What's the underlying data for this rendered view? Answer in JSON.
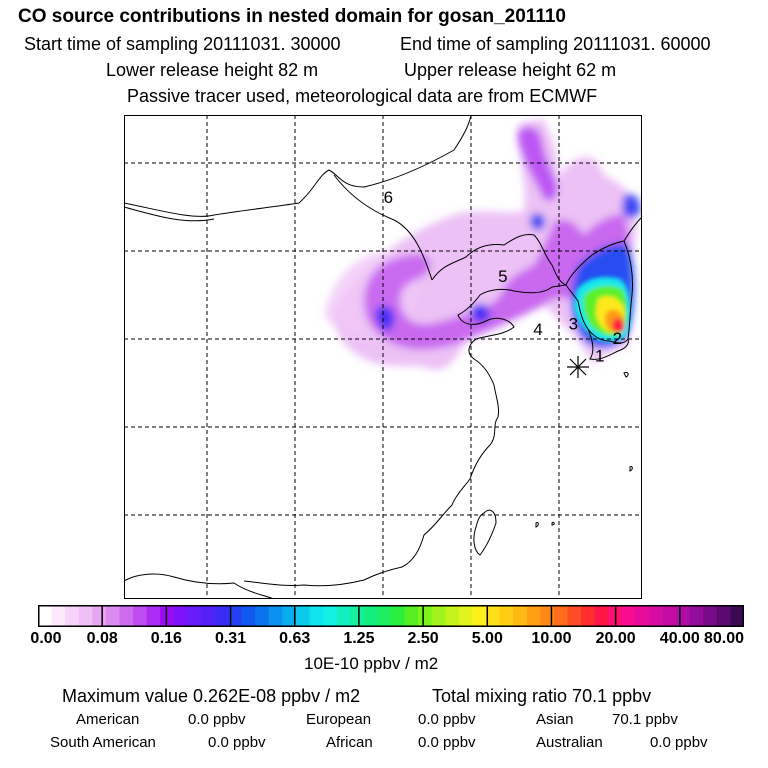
{
  "header": {
    "title": "CO  source contributions in nested domain for gosan_201110",
    "start_time": "Start time of sampling 20111031. 30000",
    "end_time": "End time of sampling 20111031. 60000",
    "lower_release": "Lower release height   82 m",
    "upper_release": "Upper release height   62 m",
    "note": "Passive tracer used, meteorological data are from ECMWF"
  },
  "chart_data": {
    "type": "heatmap",
    "title": "CO  source contributions in nested domain for gosan_201110",
    "colorbar": {
      "tick_labels": [
        "0.00",
        "0.08",
        "0.16",
        "0.31",
        "0.63",
        "1.25",
        "2.50",
        "5.00",
        "10.00",
        "20.00",
        "40.00",
        "80.00"
      ],
      "unit_label": "10E-10 ppbv / m2",
      "colors": [
        "#ffffff",
        "#fbe8fb",
        "#f6d3f8",
        "#f0bff5",
        "#e8a6f0",
        "#dc8cf0",
        "#cf6bee",
        "#c04cf0",
        "#ad2cf3",
        "#9d0af5",
        "#7e12f8",
        "#6a1cf8",
        "#5320f6",
        "#3a2bf5",
        "#2440f2",
        "#1158f0",
        "#0a74ee",
        "#0a92ee",
        "#0aaeee",
        "#0acaee",
        "#10e4ee",
        "#14f0e4",
        "#10f0c0",
        "#12f09e",
        "#14ee7e",
        "#1cee60",
        "#2cee3c",
        "#56f020",
        "#7cf41a",
        "#a0f41c",
        "#c2f41c",
        "#e2f41c",
        "#fff01c",
        "#ffe018",
        "#ffcc14",
        "#ffb814",
        "#ffa014",
        "#ff8818",
        "#ff6c1c",
        "#ff4c24",
        "#ff2c30",
        "#ff1648",
        "#ff1070",
        "#f80c90",
        "#e80c9c",
        "#d60ca4",
        "#c40ca4",
        "#ae0ca4",
        "#940c9a",
        "#780a88",
        "#5a0a70",
        "#3c0a50"
      ]
    },
    "markers": [
      {
        "label": "1",
        "lon": 128.5,
        "lat": 36.5
      },
      {
        "label": "2",
        "lon": 129.5,
        "lat": 37.5
      },
      {
        "label": "3",
        "lon": 127.0,
        "lat": 38.3
      },
      {
        "label": "4",
        "lon": 125.0,
        "lat": 38.0
      },
      {
        "label": "5",
        "lon": 123.0,
        "lat": 41.0
      },
      {
        "label": "6",
        "lon": 116.5,
        "lat": 45.5
      }
    ],
    "receptor": {
      "name": "gosan",
      "lon": 126.2,
      "lat": 33.3
    },
    "maximum_value": "Maximum value  0.262E-08 ppbv / m2",
    "total_mixing_ratio": "Total mixing ratio       70.1 ppbv",
    "regions": [
      {
        "name": "American",
        "value": "0.0 ppbv"
      },
      {
        "name": "European",
        "value": "0.0 ppbv"
      },
      {
        "name": "Asian",
        "value": "70.1 ppbv"
      },
      {
        "name": "South American",
        "value": "0.0 ppbv"
      },
      {
        "name": "African",
        "value": "0.0 ppbv"
      },
      {
        "name": "Australian",
        "value": "0.0 ppbv"
      }
    ]
  }
}
